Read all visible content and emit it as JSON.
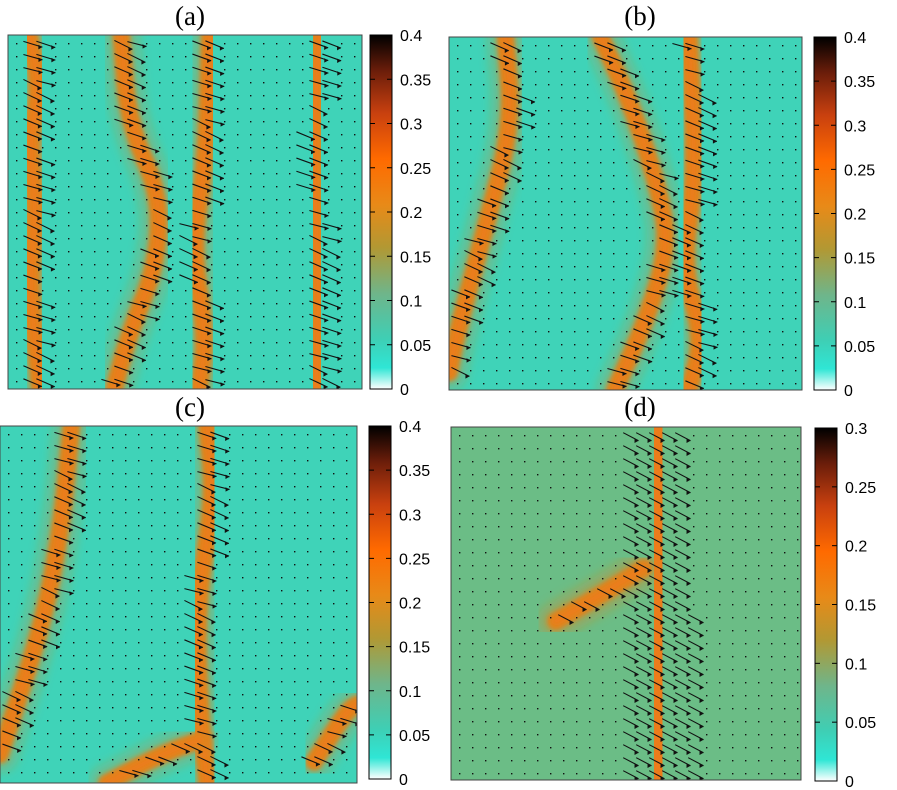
{
  "colors": {
    "background": "#3fd3b8",
    "background_d": "#6bbd86",
    "band": "#e0831f",
    "band_core": "#f07a18",
    "arrow": "#111111",
    "colormap": [
      "#ffffff",
      "#2fe6d5",
      "#3ecfb5",
      "#6fb58a",
      "#b29833",
      "#e88a18",
      "#ff6a00",
      "#c8400f",
      "#6a1d0a",
      "#000000"
    ]
  },
  "chart_data": [
    {
      "type": "heatmap",
      "title": "(a)",
      "colorbar": {
        "range": [
          0,
          0.4
        ],
        "ticks": [
          "0",
          "0.05",
          "0.1",
          "0.15",
          "0.2",
          "0.25",
          "0.3",
          "0.35",
          "0.4"
        ]
      },
      "bands": [
        {
          "points": [
            [
              0.06,
              0.0
            ],
            [
              0.09,
              0.15
            ],
            [
              0.06,
              0.3
            ],
            [
              0.08,
              0.5
            ],
            [
              0.06,
              0.7
            ],
            [
              0.09,
              1.0
            ]
          ],
          "level": 0.2
        },
        {
          "points": [
            [
              0.32,
              0.0
            ],
            [
              0.34,
              0.25
            ],
            [
              0.43,
              0.45
            ],
            [
              0.42,
              0.65
            ],
            [
              0.34,
              0.85
            ],
            [
              0.3,
              1.0
            ]
          ],
          "level": 0.2
        },
        {
          "points": [
            [
              0.57,
              0.0
            ],
            [
              0.56,
              0.35
            ],
            [
              0.52,
              0.6
            ],
            [
              0.56,
              0.85
            ],
            [
              0.54,
              1.0
            ]
          ],
          "level": 0.2
        },
        {
          "points": [
            [
              0.88,
              0.0
            ],
            [
              0.86,
              0.35
            ],
            [
              0.88,
              0.7
            ],
            [
              0.87,
              1.0
            ]
          ],
          "level": 0.2
        }
      ]
    },
    {
      "type": "heatmap",
      "title": "(b)",
      "colorbar": {
        "range": [
          0,
          0.4
        ],
        "ticks": [
          "0",
          "0.05",
          "0.1",
          "0.15",
          "0.2",
          "0.25",
          "0.3",
          "0.35",
          "0.4"
        ]
      },
      "bands": [
        {
          "points": [
            [
              0.16,
              0.0
            ],
            [
              0.18,
              0.25
            ],
            [
              0.1,
              0.55
            ],
            [
              0.02,
              0.85
            ],
            [
              0.0,
              0.95
            ]
          ],
          "level": 0.2
        },
        {
          "points": [
            [
              0.43,
              0.0
            ],
            [
              0.52,
              0.2
            ],
            [
              0.6,
              0.45
            ],
            [
              0.62,
              0.6
            ],
            [
              0.56,
              0.8
            ],
            [
              0.47,
              1.0
            ]
          ],
          "level": 0.22
        },
        {
          "points": [
            [
              0.68,
              0.0
            ],
            [
              0.7,
              0.4
            ],
            [
              0.66,
              0.65
            ],
            [
              0.72,
              0.85
            ],
            [
              0.68,
              1.0
            ]
          ],
          "level": 0.22
        }
      ]
    },
    {
      "type": "heatmap",
      "title": "(c)",
      "colorbar": {
        "range": [
          0,
          0.4
        ],
        "ticks": [
          "0",
          "0.05",
          "0.1",
          "0.15",
          "0.2",
          "0.25",
          "0.3",
          "0.35",
          "0.4"
        ]
      },
      "bands": [
        {
          "points": [
            [
              0.2,
              0.0
            ],
            [
              0.17,
              0.3
            ],
            [
              0.12,
              0.55
            ],
            [
              0.04,
              0.8
            ],
            [
              0.0,
              0.92
            ]
          ],
          "level": 0.22
        },
        {
          "points": [
            [
              0.58,
              0.0
            ],
            [
              0.6,
              0.2
            ],
            [
              0.55,
              0.5
            ],
            [
              0.56,
              0.8
            ],
            [
              0.58,
              1.0
            ]
          ],
          "level": 0.22
        },
        {
          "points": [
            [
              0.3,
              1.0
            ],
            [
              0.45,
              0.92
            ],
            [
              0.56,
              0.88
            ]
          ],
          "level": 0.2
        },
        {
          "points": [
            [
              0.88,
              0.94
            ],
            [
              0.97,
              0.8
            ],
            [
              1.0,
              0.78
            ]
          ],
          "level": 0.2
        }
      ]
    },
    {
      "type": "heatmap",
      "title": "(d)",
      "colorbar": {
        "range": [
          0,
          0.3
        ],
        "ticks": [
          "0",
          "0.05",
          "0.1",
          "0.15",
          "0.2",
          "0.25",
          "0.3"
        ]
      },
      "bands": [
        {
          "points": [
            [
              0.59,
              0.0
            ],
            [
              0.58,
              0.3
            ],
            [
              0.6,
              0.6
            ],
            [
              0.6,
              1.0
            ]
          ],
          "level": 0.17,
          "wide": true
        },
        {
          "points": [
            [
              0.3,
              0.55
            ],
            [
              0.42,
              0.48
            ],
            [
              0.55,
              0.4
            ]
          ],
          "level": 0.13
        }
      ]
    }
  ]
}
